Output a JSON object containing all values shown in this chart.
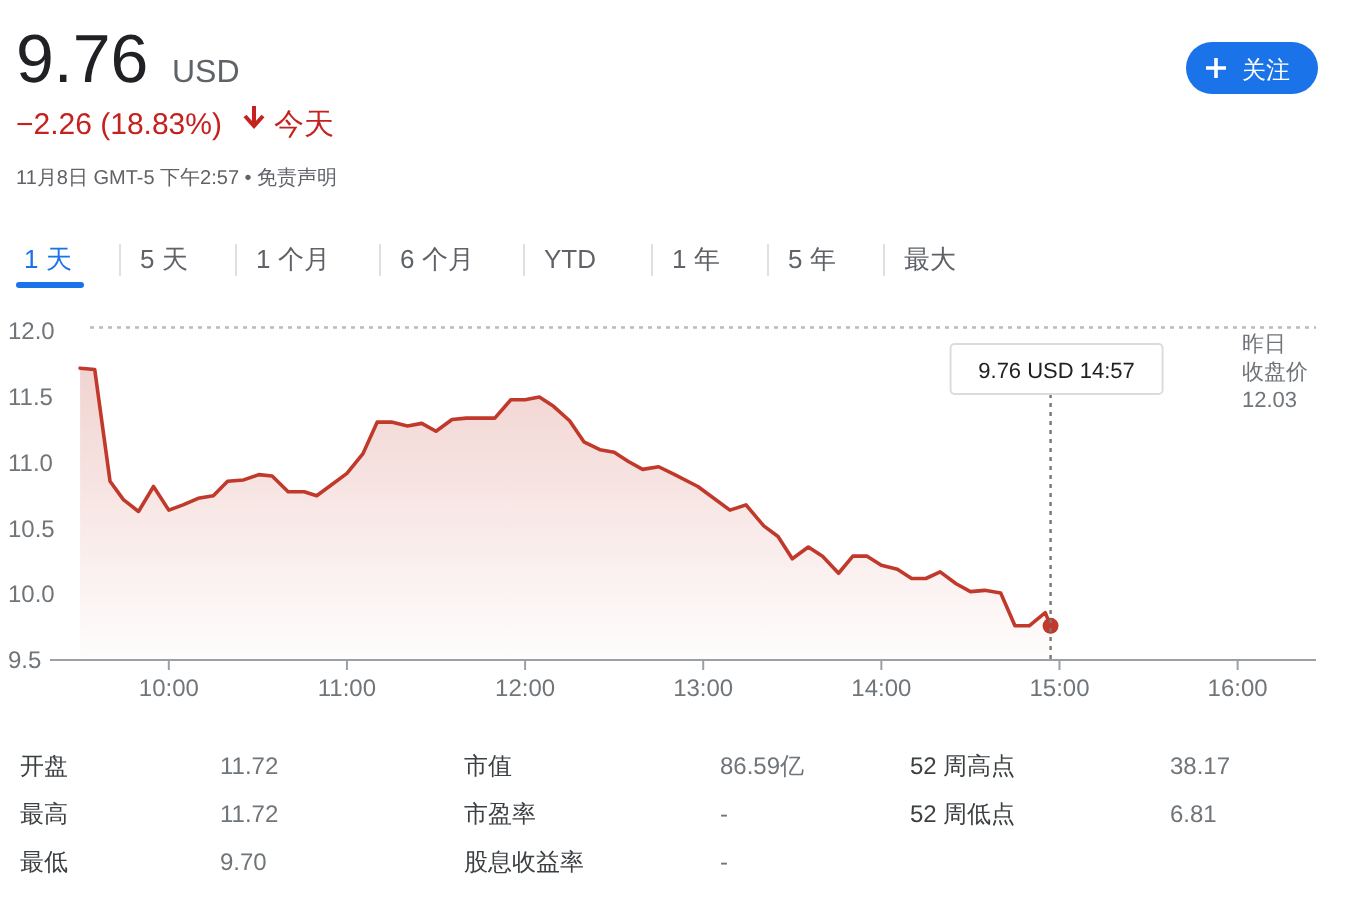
{
  "chart_data": [
    {
      "type": "other",
      "annotations": [
        "9.76",
        "USD",
        "−2.26 (18.83%)",
        "今天",
        "11月8日 GMT-5 下午2:57 • 免责声明",
        "关注",
        "1 天",
        "5 天",
        "1 个月",
        "6 个月",
        "YTD",
        "1 年",
        "5 年",
        "最大"
      ]
    },
    {
      "type": "area",
      "x": [
        9.502,
        9.584,
        9.67,
        9.745,
        9.83,
        9.914,
        10.0,
        10.08,
        10.165,
        10.25,
        10.33,
        10.42,
        10.505,
        10.58,
        10.67,
        10.76,
        10.83,
        10.91,
        11.0,
        11.09,
        11.17,
        11.25,
        11.34,
        11.42,
        11.5,
        11.59,
        11.67,
        11.83,
        11.92,
        12.0,
        12.08,
        12.16,
        12.25,
        12.33,
        12.42,
        12.5,
        12.58,
        12.66,
        12.75,
        12.84,
        12.97,
        13.15,
        13.24,
        13.34,
        13.42,
        13.5,
        13.59,
        13.67,
        13.76,
        13.84,
        13.92,
        14.0,
        14.09,
        14.17,
        14.25,
        14.33,
        14.42,
        14.5,
        14.58,
        14.67,
        14.75,
        14.83,
        14.92,
        14.95
      ],
      "series": [
        {
          "color": "#c0392b",
          "values": [
            11.72,
            11.71,
            10.86,
            10.72,
            10.63,
            10.82,
            10.64,
            10.68,
            10.73,
            10.75,
            10.86,
            10.87,
            10.91,
            10.9,
            10.78,
            10.78,
            10.75,
            10.83,
            10.92,
            11.07,
            11.31,
            11.31,
            11.28,
            11.3,
            11.24,
            11.33,
            11.34,
            11.34,
            11.48,
            11.48,
            11.5,
            11.43,
            11.32,
            11.16,
            11.1,
            11.08,
            11.01,
            10.95,
            10.97,
            10.91,
            10.82,
            10.64,
            10.68,
            10.52,
            10.44,
            10.27,
            10.36,
            10.29,
            10.16,
            10.29,
            10.29,
            10.22,
            10.19,
            10.12,
            10.12,
            10.17,
            10.08,
            10.02,
            10.03,
            10.01,
            9.76,
            9.76,
            9.86,
            9.76
          ]
        }
      ],
      "xlim": [
        9.333,
        16.44
      ],
      "xticks": [
        {
          "value": 10,
          "label": "10:00"
        },
        {
          "value": 11,
          "label": "11:00"
        },
        {
          "value": 12,
          "label": "12:00"
        },
        {
          "value": 13,
          "label": "13:00"
        },
        {
          "value": 14,
          "label": "14:00"
        },
        {
          "value": 15,
          "label": "15:00"
        },
        {
          "value": 16,
          "label": "16:00"
        }
      ],
      "ylim": [
        9.5,
        12.05
      ],
      "yticks": [
        {
          "value": 9.5,
          "label": "9.5"
        },
        {
          "value": 10.0,
          "label": "10.0"
        },
        {
          "value": 10.5,
          "label": "10.5"
        },
        {
          "value": 11.0,
          "label": "11.0"
        },
        {
          "value": 11.5,
          "label": "11.5"
        },
        {
          "value": 12.0,
          "label": "12.0"
        }
      ],
      "ref_lines": [
        {
          "axis": "y",
          "value": 12.03,
          "label": "昨日收盘价 12.03",
          "line_style": "dotted",
          "color": "#bbbbbb"
        },
        {
          "axis": "x",
          "value": 14.95,
          "label": null,
          "line_style": "dotted",
          "color": "#777777"
        }
      ],
      "annotations": [
        "9.76 USD 14:57"
      ],
      "grid": false
    },
    {
      "type": "other",
      "annotations": [
        "开盘",
        "11.72",
        "市值",
        "86.59亿",
        "52 周高点",
        "38.17",
        "最高",
        "11.72",
        "市盈率",
        "-",
        "52 周低点",
        "6.81",
        "最低",
        "9.70",
        "股息收益率",
        "-"
      ]
    }
  ]
}
